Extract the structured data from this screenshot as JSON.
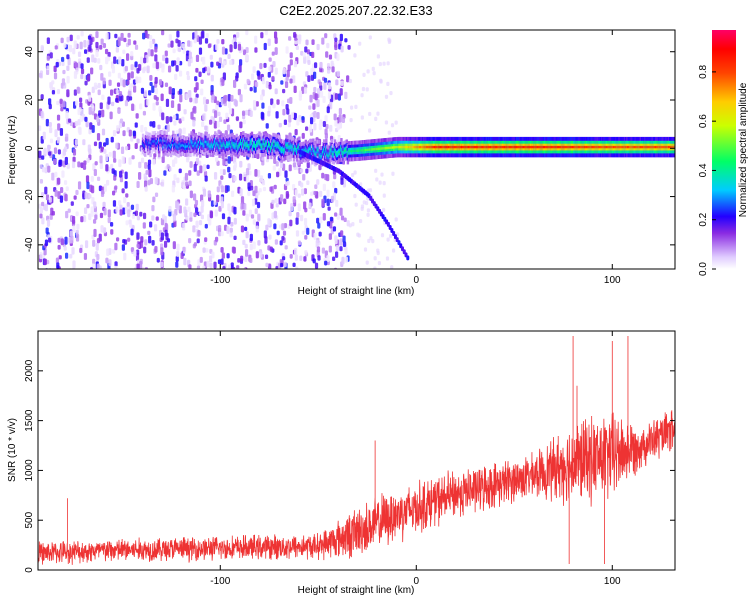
{
  "title": "C2E2.2025.207.22.32.E33",
  "chart_data": [
    {
      "type": "heatmap",
      "xlabel": "Height of straight line (km)",
      "ylabel": "Frequency (Hz)",
      "xlim": [
        -193,
        132
      ],
      "ylim": [
        -50,
        49
      ],
      "xticks": [
        -100,
        0,
        100
      ],
      "yticks": [
        -40,
        -20,
        0,
        20,
        40
      ],
      "colorbar": {
        "label": "Normalized spectral amplitude",
        "range": [
          0,
          0.97
        ],
        "ticks": [
          0,
          0.2,
          0.4,
          0.6,
          0.8
        ],
        "colormap": [
          "#e8d8ff",
          "#8a2be2",
          "#2200ff",
          "#00ccff",
          "#00ff66",
          "#ffff00",
          "#ff8800",
          "#ff0000",
          "#ff0066"
        ]
      },
      "features": {
        "noise_region_end_km": -35,
        "main_line": [
          {
            "x": -140,
            "y": 2,
            "amplitude": 0.25
          },
          {
            "x": -100,
            "y": 1.5,
            "amplitude": 0.35
          },
          {
            "x": -80,
            "y": 1.5,
            "amplitude": 0.4
          },
          {
            "x": -50,
            "y": -2,
            "amplitude": 0.35
          },
          {
            "x": -30,
            "y": -1,
            "amplitude": 0.45
          },
          {
            "x": -10,
            "y": 0.5,
            "amplitude": 0.6
          },
          {
            "x": 10,
            "y": 0.5,
            "amplitude": 0.85
          },
          {
            "x": 70,
            "y": 0.5,
            "amplitude": 0.85
          },
          {
            "x": 100,
            "y": 0.5,
            "amplitude": 0.8
          },
          {
            "x": 132,
            "y": 0.5,
            "amplitude": 0.8
          }
        ],
        "descending_branch": [
          {
            "x": -60,
            "y": -2
          },
          {
            "x": -40,
            "y": -10
          },
          {
            "x": -25,
            "y": -20
          },
          {
            "x": -15,
            "y": -32
          },
          {
            "x": -5,
            "y": -46
          }
        ]
      }
    },
    {
      "type": "line",
      "xlabel": "Height of straight line (km)",
      "ylabel": "SNR (10 * v/v)",
      "xlim": [
        -193,
        132
      ],
      "ylim": [
        0,
        2400
      ],
      "xticks": [
        -100,
        0,
        100
      ],
      "yticks": [
        0,
        500,
        1000,
        1500,
        2000
      ],
      "series": [
        {
          "color": "#ee3333",
          "envelope": [
            {
              "x": -193,
              "base": 170,
              "spread": 130
            },
            {
              "x": -150,
              "base": 200,
              "spread": 140
            },
            {
              "x": -100,
              "base": 220,
              "spread": 140
            },
            {
              "x": -50,
              "base": 240,
              "spread": 150
            },
            {
              "x": -30,
              "base": 380,
              "spread": 300
            },
            {
              "x": -10,
              "base": 560,
              "spread": 320
            },
            {
              "x": 20,
              "base": 760,
              "spread": 280
            },
            {
              "x": 60,
              "base": 950,
              "spread": 250
            },
            {
              "x": 80,
              "base": 1080,
              "spread": 480
            },
            {
              "x": 100,
              "base": 1150,
              "spread": 520
            },
            {
              "x": 115,
              "base": 1250,
              "spread": 250
            },
            {
              "x": 132,
              "base": 1400,
              "spread": 250
            }
          ],
          "spikes": [
            {
              "x": -178,
              "y": 720
            },
            {
              "x": -21,
              "y": 1300
            },
            {
              "x": 80,
              "y": 2350
            },
            {
              "x": 82,
              "y": 1850
            },
            {
              "x": 100,
              "y": 2300
            },
            {
              "x": 108,
              "y": 2350
            },
            {
              "x": 78,
              "y": 60
            },
            {
              "x": 96,
              "y": 60
            }
          ]
        }
      ]
    }
  ]
}
